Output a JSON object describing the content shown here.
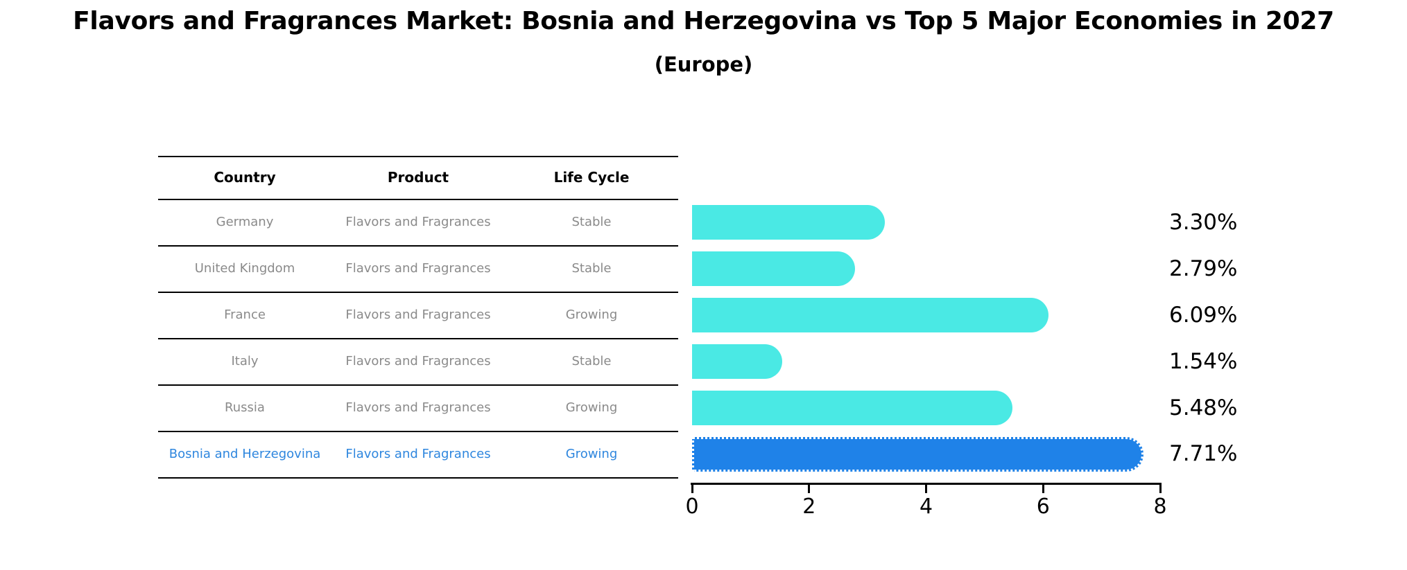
{
  "title": "Flavors and Fragrances Market: Bosnia and Herzegovina vs Top 5 Major Economies in 2027",
  "subtitle": "(Europe)",
  "table": {
    "headers": [
      "Country",
      "Product",
      "Life Cycle"
    ],
    "rows": [
      {
        "country": "Germany",
        "product": "Flavors and Fragrances",
        "life_cycle": "Stable"
      },
      {
        "country": "United Kingdom",
        "product": "Flavors and Fragrances",
        "life_cycle": "Stable"
      },
      {
        "country": "France",
        "product": "Flavors and Fragrances",
        "life_cycle": "Growing"
      },
      {
        "country": "Italy",
        "product": "Flavors and Fragrances",
        "life_cycle": "Stable"
      },
      {
        "country": "Russia",
        "product": "Flavors and Fragrances",
        "life_cycle": "Growing"
      },
      {
        "country": "Bosnia and Herzegovina",
        "product": "Flavors and Fragrances",
        "life_cycle": "Growing"
      }
    ],
    "highlight_row_index": 5
  },
  "chart_data": {
    "type": "bar",
    "orientation": "horizontal",
    "title": "Flavors and Fragrances Market: Bosnia and Herzegovina vs Top 5 Major Economies in 2027",
    "subtitle": "(Europe)",
    "categories": [
      "Germany",
      "United Kingdom",
      "France",
      "Italy",
      "Russia",
      "Bosnia and Herzegovina"
    ],
    "values": [
      3.3,
      2.79,
      6.09,
      1.54,
      5.48,
      7.71
    ],
    "labels": [
      "3.30%",
      "2.79%",
      "6.09%",
      "1.54%",
      "5.48%",
      "7.71%"
    ],
    "highlight_index": 5,
    "xlabel": "",
    "ylabel": "",
    "xlim": [
      0,
      8
    ],
    "xticks": [
      0,
      2,
      4,
      6,
      8
    ],
    "grid": false,
    "legend": false
  },
  "colors": {
    "bar": "#4AE9E4",
    "bar_highlight": "#1F82E8",
    "bar_highlight_border": "#FFFFFF",
    "row_text": "#8A8A8A",
    "highlight_text": "#2E86DE",
    "axis": "#000000"
  }
}
